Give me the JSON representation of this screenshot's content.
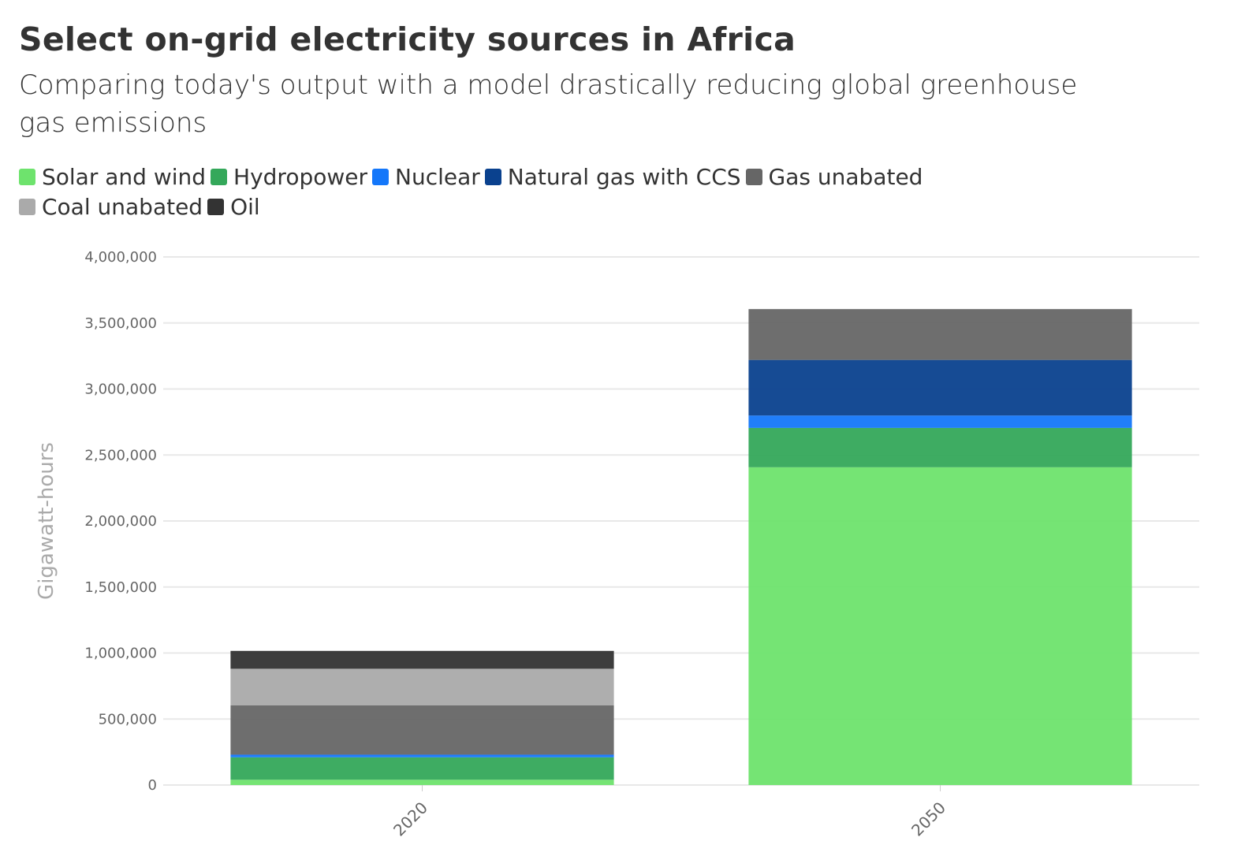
{
  "chart_data": {
    "type": "bar",
    "stacked": true,
    "title": "Select on-grid electricity sources in Africa",
    "subtitle": "Comparing today's output with a model drastically reducing global greenhouse gas emissions",
    "xlabel": "",
    "ylabel": "Gigawatt-hours",
    "ylim": [
      0,
      4000000
    ],
    "yticks": [
      0,
      500000,
      1000000,
      1500000,
      2000000,
      2500000,
      3000000,
      3500000,
      4000000
    ],
    "ytick_labels": [
      "0",
      "500,000",
      "1,000,000",
      "1,500,000",
      "2,000,000",
      "2,500,000",
      "3,000,000",
      "3,500,000",
      "4,000,000"
    ],
    "grid": true,
    "legend_position": "top",
    "categories": [
      "2020",
      "2050"
    ],
    "series": [
      {
        "name": "Solar and wind",
        "color": "#6ee36d",
        "values": [
          40000,
          2407000
        ]
      },
      {
        "name": "Hydropower",
        "color": "#34a85a",
        "values": [
          170000,
          298000
        ]
      },
      {
        "name": "Nuclear",
        "color": "#1477fa",
        "values": [
          20000,
          94000
        ]
      },
      {
        "name": "Natural gas with CCS",
        "color": "#0a418e",
        "values": [
          0,
          421000
        ]
      },
      {
        "name": "Gas unabated",
        "color": "#666666",
        "values": [
          373000,
          385000
        ]
      },
      {
        "name": "Coal unabated",
        "color": "#aaaaaa",
        "values": [
          278000,
          0
        ]
      },
      {
        "name": "Oil",
        "color": "#333333",
        "values": [
          135000,
          0
        ]
      }
    ]
  }
}
